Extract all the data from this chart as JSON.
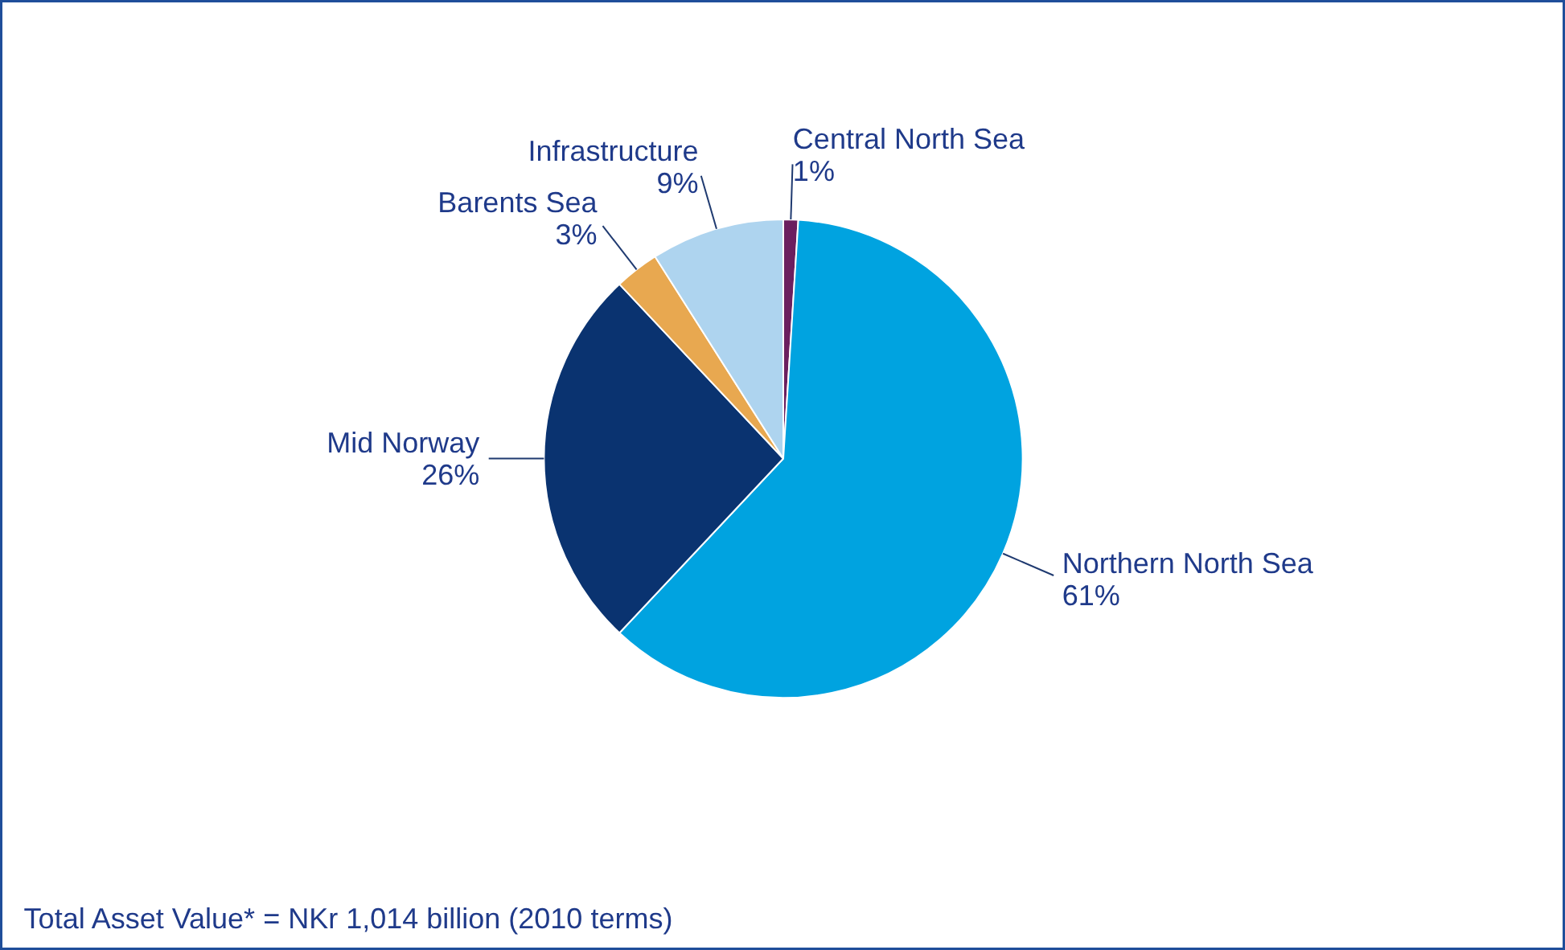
{
  "chart_data": {
    "type": "pie",
    "categories": [
      "Central North Sea",
      "Northern North Sea",
      "Mid Norway",
      "Barents Sea",
      "Infrastructure"
    ],
    "values": [
      1,
      61,
      26,
      3,
      9
    ],
    "value_labels": [
      "1%",
      "61%",
      "26%",
      "3%",
      "9%"
    ],
    "colors": [
      "#6b1f5f",
      "#00a3e0",
      "#0a3370",
      "#e8a850",
      "#aed4ef"
    ],
    "annotations": [
      "Total Asset Value* = NKr 1,014 billion (2010 terms)"
    ]
  }
}
